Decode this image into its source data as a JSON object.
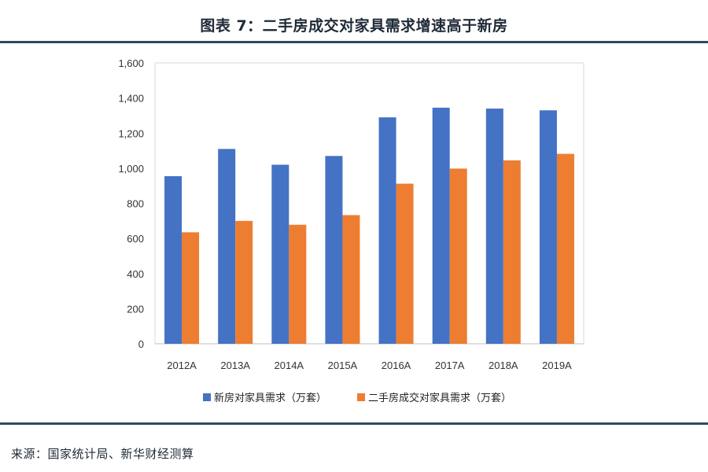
{
  "title": "图表 7：二手房成交对家具需求增速高于新房",
  "source": "来源：国家统计局、新华财经测算",
  "colors": {
    "series1": "#4472C4",
    "series2": "#ED7D31",
    "rule": "#2e4a5b"
  },
  "chart_data": {
    "type": "bar",
    "title": "",
    "xlabel": "",
    "ylabel": "",
    "ylim": [
      0,
      1600
    ],
    "yticks": [
      0,
      200,
      400,
      600,
      800,
      1000,
      1200,
      1400,
      1600
    ],
    "ytick_labels": [
      "0",
      "200",
      "400",
      "600",
      "800",
      "1,000",
      "1,200",
      "1,400",
      "1,600"
    ],
    "categories": [
      "2012A",
      "2013A",
      "2014A",
      "2015A",
      "2016A",
      "2017A",
      "2018A",
      "2019A"
    ],
    "series": [
      {
        "name": "新房对家具需求（万套）",
        "values": [
          955,
          1110,
          1020,
          1070,
          1290,
          1345,
          1340,
          1330
        ]
      },
      {
        "name": "二手房成交对家具需求（万套）",
        "values": [
          635,
          700,
          678,
          733,
          912,
          998,
          1045,
          1082
        ]
      }
    ],
    "grid": false,
    "legend_position": "bottom"
  }
}
